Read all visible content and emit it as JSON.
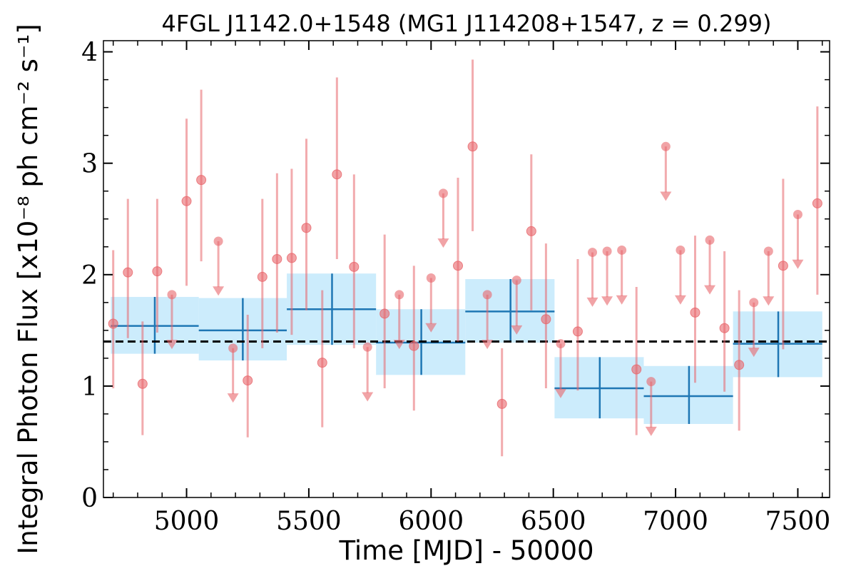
{
  "chart_data": {
    "type": "scatter",
    "title": "4FGL J1142.0+1548 (MG1 J114208+1547, z = 0.299)",
    "xlabel": "Time [MJD] - 50000",
    "ylabel": "Integral Photon Flux [x10⁻⁸ ph cm⁻² s⁻¹]",
    "xlim": [
      4660,
      7630
    ],
    "ylim": [
      0,
      4.1
    ],
    "x_ticks": [
      5000,
      5500,
      6000,
      6500,
      7000,
      7500
    ],
    "x_tick_labels": [
      "5000",
      "5500",
      "6000",
      "6500",
      "7000",
      "7500"
    ],
    "y_ticks": [
      0,
      1,
      2,
      3,
      4
    ],
    "y_tick_labels": [
      "0",
      "1",
      "2",
      "3",
      "4"
    ],
    "grid": false,
    "mean_flux": 1.4,
    "colors": {
      "points": "#e8666b",
      "bins_fill": "#bfe7fb",
      "bins_line": "#1f77b4",
      "mean_line": "#000000"
    },
    "series": [
      {
        "kind": "detections",
        "values": [
          {
            "x": 4700,
            "y": 1.56,
            "err": [
              0.98,
              2.22
            ]
          },
          {
            "x": 4760,
            "y": 2.02,
            "err": [
              1.43,
              2.68
            ]
          },
          {
            "x": 4820,
            "y": 1.02,
            "err": [
              0.56,
              1.58
            ]
          },
          {
            "x": 4880,
            "y": 2.03,
            "err": [
              1.48,
              2.68
            ]
          },
          {
            "x": 5000,
            "y": 2.66,
            "err": [
              1.9,
              3.4
            ]
          },
          {
            "x": 5060,
            "y": 2.85,
            "err": [
              2.12,
              3.66
            ]
          },
          {
            "x": 5250,
            "y": 1.05,
            "err": [
              0.54,
              1.64
            ]
          },
          {
            "x": 5310,
            "y": 1.98,
            "err": [
              1.34,
              2.68
            ]
          },
          {
            "x": 5370,
            "y": 2.14,
            "err": [
              1.48,
              2.91
            ]
          },
          {
            "x": 5430,
            "y": 2.15,
            "err": [
              1.46,
              2.95
            ]
          },
          {
            "x": 5490,
            "y": 2.42,
            "err": [
              1.68,
              3.22
            ]
          },
          {
            "x": 5555,
            "y": 1.21,
            "err": [
              0.63,
              1.86
            ]
          },
          {
            "x": 5615,
            "y": 2.9,
            "err": [
              2.14,
              3.77
            ]
          },
          {
            "x": 5685,
            "y": 2.07,
            "err": [
              1.34,
              2.9
            ]
          },
          {
            "x": 5810,
            "y": 1.65,
            "err": [
              0.98,
              2.36
            ]
          },
          {
            "x": 5930,
            "y": 1.36,
            "err": [
              0.78,
              2.08
            ]
          },
          {
            "x": 6110,
            "y": 2.08,
            "err": [
              1.4,
              2.87
            ]
          },
          {
            "x": 6170,
            "y": 3.15,
            "err": [
              2.39,
              3.93
            ]
          },
          {
            "x": 6290,
            "y": 0.84,
            "err": [
              0.37,
              1.34
            ]
          },
          {
            "x": 6410,
            "y": 2.39,
            "err": [
              1.68,
              3.08
            ]
          },
          {
            "x": 6470,
            "y": 1.6,
            "err": [
              0.98,
              2.28
            ]
          },
          {
            "x": 6600,
            "y": 1.49,
            "err": [
              0.96,
              2.14
            ]
          },
          {
            "x": 6840,
            "y": 1.15,
            "err": [
              0.56,
              1.89
            ]
          },
          {
            "x": 7080,
            "y": 1.66,
            "err": [
              1.03,
              2.35
            ]
          },
          {
            "x": 7200,
            "y": 1.52,
            "err": [
              0.95,
              2.21
            ]
          },
          {
            "x": 7260,
            "y": 1.19,
            "err": [
              0.6,
              1.86
            ]
          },
          {
            "x": 7440,
            "y": 2.08,
            "err": [
              1.33,
              2.86
            ]
          },
          {
            "x": 7580,
            "y": 2.64,
            "err": [
              1.82,
              3.51
            ]
          }
        ]
      },
      {
        "kind": "upper_limits",
        "values": [
          {
            "x": 4940,
            "y": 1.82,
            "to": 1.37
          },
          {
            "x": 5130,
            "y": 2.3,
            "to": 1.85
          },
          {
            "x": 5190,
            "y": 1.34,
            "to": 0.89
          },
          {
            "x": 5740,
            "y": 1.35,
            "to": 0.9
          },
          {
            "x": 5870,
            "y": 1.82,
            "to": 1.37
          },
          {
            "x": 6000,
            "y": 1.97,
            "to": 1.52
          },
          {
            "x": 6050,
            "y": 2.73,
            "to": 2.28
          },
          {
            "x": 6230,
            "y": 1.82,
            "to": 1.37
          },
          {
            "x": 6350,
            "y": 1.95,
            "to": 1.5
          },
          {
            "x": 6530,
            "y": 1.38,
            "to": 0.93
          },
          {
            "x": 6660,
            "y": 2.2,
            "to": 1.75
          },
          {
            "x": 6720,
            "y": 2.21,
            "to": 1.76
          },
          {
            "x": 6780,
            "y": 2.22,
            "to": 1.77
          },
          {
            "x": 6900,
            "y": 1.04,
            "to": 0.59
          },
          {
            "x": 6960,
            "y": 3.15,
            "to": 2.7
          },
          {
            "x": 7020,
            "y": 2.22,
            "to": 1.77
          },
          {
            "x": 7140,
            "y": 2.31,
            "to": 1.86
          },
          {
            "x": 7320,
            "y": 1.75,
            "to": 1.3
          },
          {
            "x": 7380,
            "y": 2.21,
            "to": 1.76
          },
          {
            "x": 7500,
            "y": 2.54,
            "to": 2.09
          }
        ]
      },
      {
        "kind": "bayesian_blocks",
        "values": [
          {
            "x0": 4690,
            "x1": 5050,
            "xc": 4870,
            "y": 1.54,
            "ylo": 1.29,
            "yhi": 1.8
          },
          {
            "x0": 5050,
            "x1": 5410,
            "xc": 5230,
            "y": 1.5,
            "ylo": 1.23,
            "yhi": 1.79
          },
          {
            "x0": 5410,
            "x1": 5775,
            "xc": 5595,
            "y": 1.69,
            "ylo": 1.37,
            "yhi": 2.01
          },
          {
            "x0": 5775,
            "x1": 6140,
            "xc": 5960,
            "y": 1.39,
            "ylo": 1.1,
            "yhi": 1.69
          },
          {
            "x0": 6140,
            "x1": 6505,
            "xc": 6325,
            "y": 1.67,
            "ylo": 1.39,
            "yhi": 1.96
          },
          {
            "x0": 6505,
            "x1": 6870,
            "xc": 6690,
            "y": 0.98,
            "ylo": 0.71,
            "yhi": 1.26
          },
          {
            "x0": 6870,
            "x1": 7235,
            "xc": 7055,
            "y": 0.91,
            "ylo": 0.66,
            "yhi": 1.18
          },
          {
            "x0": 7235,
            "x1": 7600,
            "xc": 7420,
            "y": 1.38,
            "ylo": 1.08,
            "yhi": 1.67
          }
        ]
      }
    ]
  }
}
